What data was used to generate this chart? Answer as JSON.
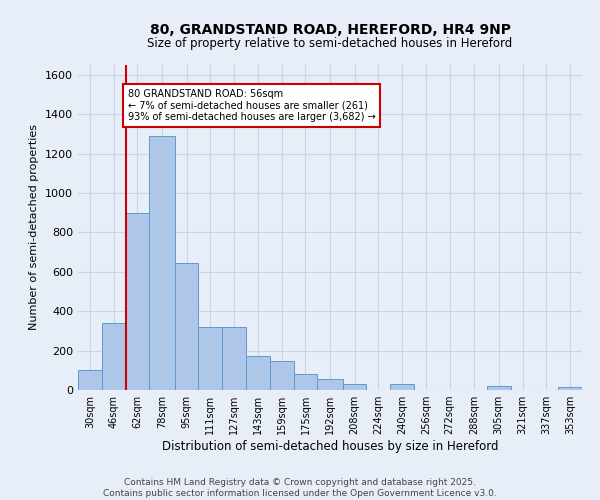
{
  "title": "80, GRANDSTAND ROAD, HEREFORD, HR4 9NP",
  "subtitle": "Size of property relative to semi-detached houses in Hereford",
  "xlabel": "Distribution of semi-detached houses by size in Hereford",
  "ylabel": "Number of semi-detached properties",
  "footer": "Contains HM Land Registry data © Crown copyright and database right 2025.\nContains public sector information licensed under the Open Government Licence v3.0.",
  "bar_color": "#aec6e8",
  "bar_edge_color": "#5b9bd5",
  "vline_color": "#cc0000",
  "vline_x_bin": 2,
  "annotation_text": "80 GRANDSTAND ROAD: 56sqm\n← 7% of semi-detached houses are smaller (261)\n93% of semi-detached houses are larger (3,682) →",
  "annotation_box_color": "#ffffff",
  "annotation_box_edge": "#cc0000",
  "categories": [
    "30sqm",
    "46sqm",
    "62sqm",
    "78sqm",
    "95sqm",
    "111sqm",
    "127sqm",
    "143sqm",
    "159sqm",
    "175sqm",
    "192sqm",
    "208sqm",
    "224sqm",
    "240sqm",
    "256sqm",
    "272sqm",
    "288sqm",
    "305sqm",
    "321sqm",
    "337sqm",
    "353sqm"
  ],
  "bin_edges": [
    22,
    38,
    54,
    70,
    87,
    103,
    119,
    135,
    151,
    167,
    183,
    200,
    216,
    232,
    248,
    264,
    280,
    297,
    313,
    329,
    345,
    361
  ],
  "values": [
    100,
    340,
    900,
    1290,
    645,
    320,
    320,
    175,
    145,
    80,
    55,
    30,
    0,
    28,
    0,
    0,
    0,
    20,
    0,
    0,
    15
  ],
  "ylim": [
    0,
    1650
  ],
  "yticks": [
    0,
    200,
    400,
    600,
    800,
    1000,
    1200,
    1400,
    1600
  ],
  "grid_color": "#c8d4e8",
  "bg_color": "#e8eef8"
}
